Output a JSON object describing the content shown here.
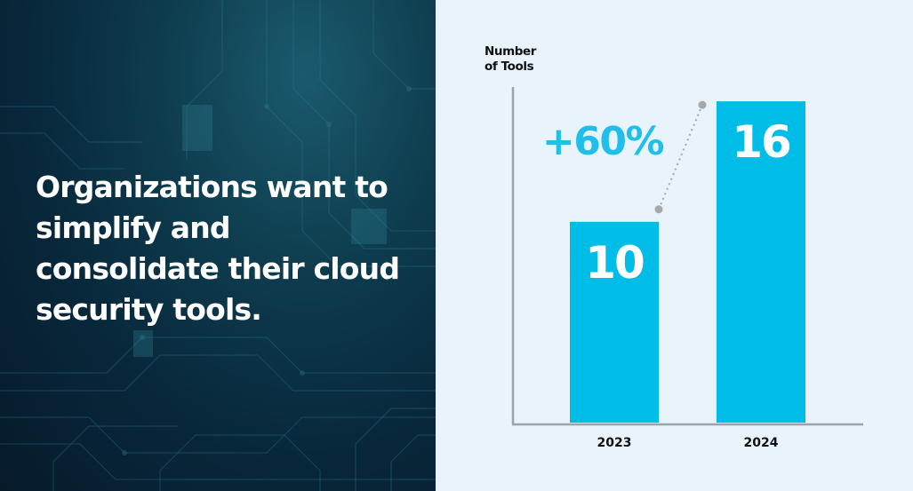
{
  "headline": "Organizations want to simplify and consolidate their cloud security tools.",
  "colors": {
    "bar": "#00bde8",
    "accent": "#1fbfea",
    "axis": "#9aa4ac",
    "text": "#111111",
    "connector": "#a8a8a8"
  },
  "chart_data": {
    "type": "bar",
    "ylabel_lines": [
      "Number",
      "of Tools"
    ],
    "categories": [
      "2023",
      "2024"
    ],
    "values": [
      10,
      16
    ],
    "data_labels": [
      "10",
      "16"
    ],
    "annotation": "+60%",
    "ylim": [
      0,
      16.8
    ],
    "grid": false,
    "legend": "none"
  }
}
